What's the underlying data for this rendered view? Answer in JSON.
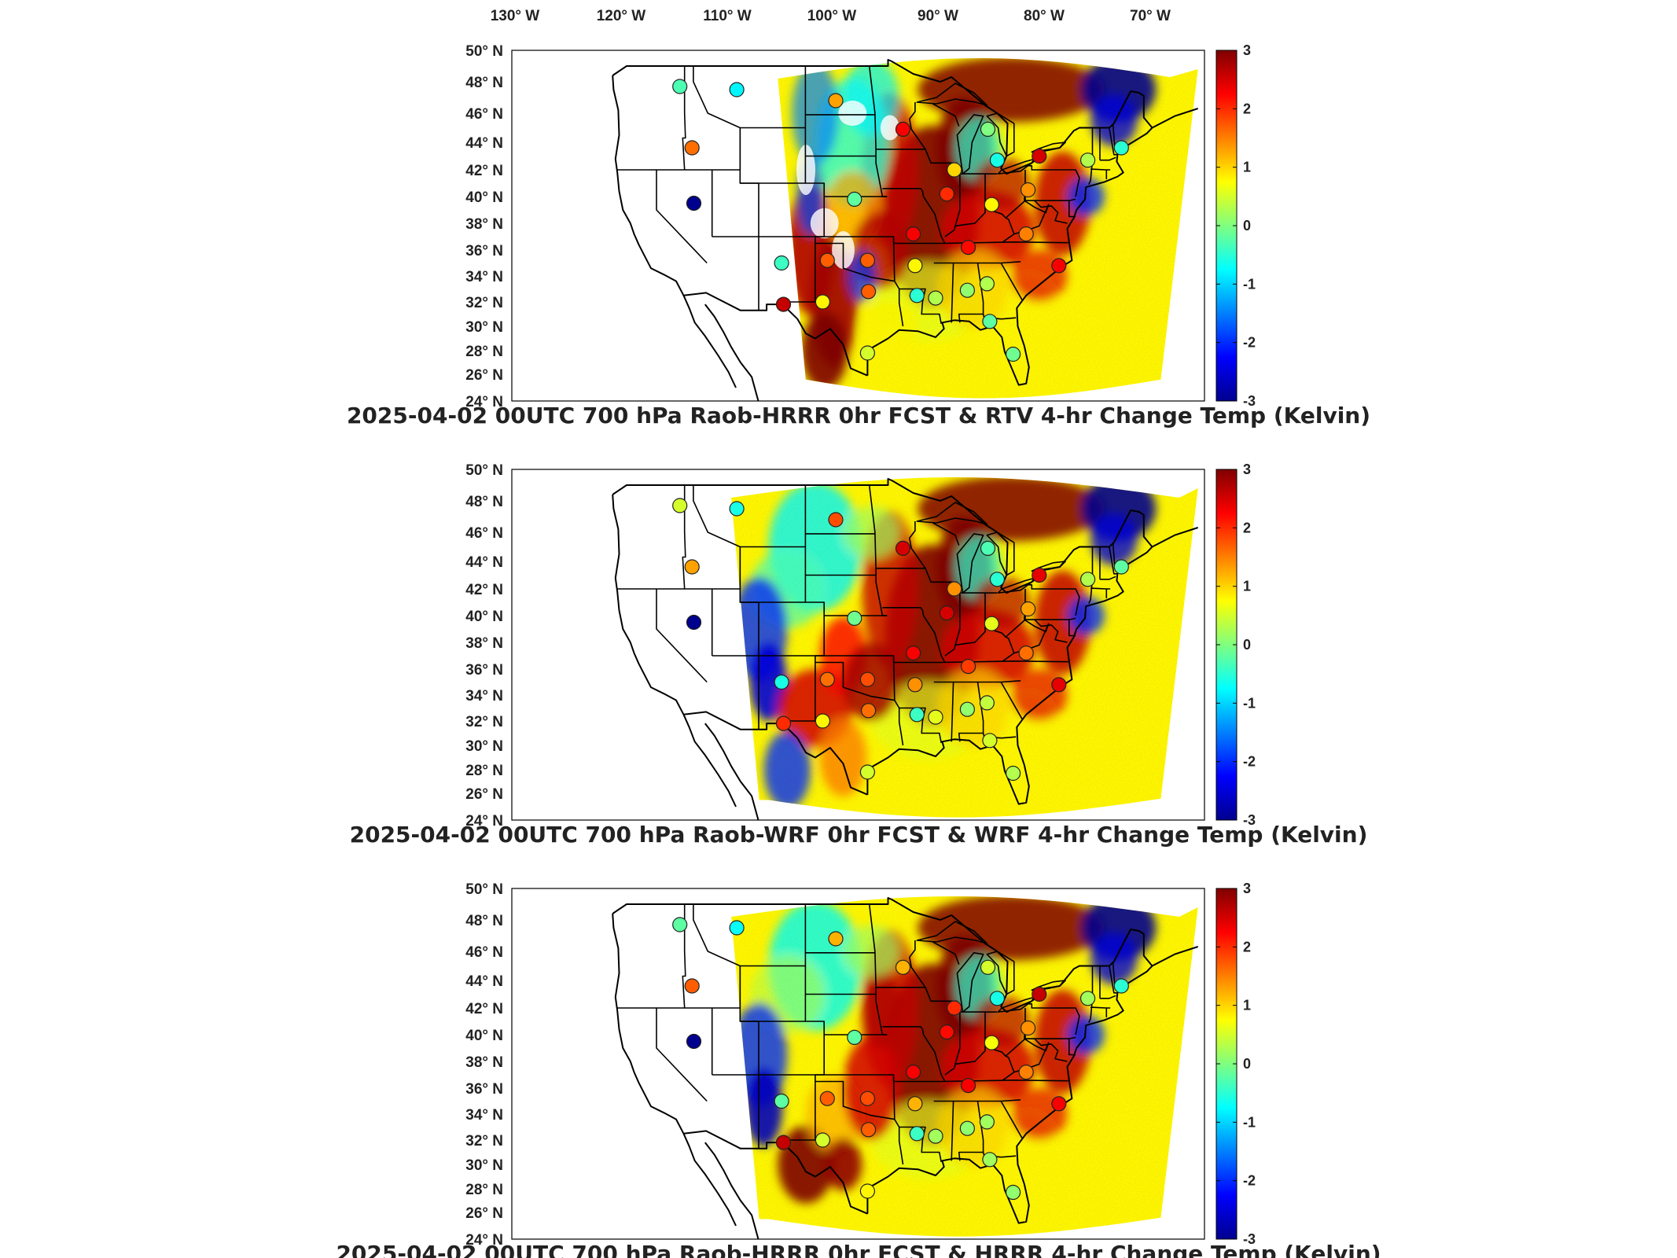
{
  "lon_ticks": [
    "130° W",
    "120° W",
    "110° W",
    "100° W",
    "90° W",
    "80° W",
    "70° W"
  ],
  "lat_ticks": [
    "50° N",
    "48° N",
    "46° N",
    "44° N",
    "42° N",
    "40° N",
    "38° N",
    "36° N",
    "34° N",
    "32° N",
    "30° N",
    "28° N",
    "26° N",
    "24° N"
  ],
  "colorbar": {
    "min": -3,
    "max": 3,
    "ticks": [
      "3",
      "2",
      "1",
      "0",
      "-1",
      "-2",
      "-3"
    ]
  },
  "panels": [
    {
      "title": "2025-04-02 00UTC 700 hPa Raob-HRRR 0hr FCST & RTV 4-hr Change Temp (Kelvin)",
      "variant": "rtv"
    },
    {
      "title": "2025-04-02 00UTC 700 hPa Raob-WRF 0hr FCST & WRF 4-hr Change Temp (Kelvin)",
      "variant": "wrf"
    },
    {
      "title": "2025-04-02 00UTC 700 hPa Raob-HRRR 0hr FCST & HRRR 4-hr Change Temp (Kelvin)",
      "variant": "hrrr"
    }
  ],
  "stations": [
    {
      "lon": -117.5,
      "lat": 47.7,
      "v": [
        -0.3,
        0.5,
        -0.2
      ]
    },
    {
      "lon": -111.4,
      "lat": 47.5,
      "v": [
        -0.8,
        -0.6,
        -0.7
      ]
    },
    {
      "lon": -100.8,
      "lat": 46.8,
      "v": [
        1.3,
        1.8,
        1.2
      ]
    },
    {
      "lon": -93.6,
      "lat": 44.9,
      "v": [
        2.3,
        2.5,
        1.2
      ]
    },
    {
      "lon": -116.2,
      "lat": 43.6,
      "v": [
        1.6,
        1.3,
        1.7
      ]
    },
    {
      "lon": -88.1,
      "lat": 42.0,
      "v": [
        1.0,
        1.4,
        2.0
      ]
    },
    {
      "lon": -84.5,
      "lat": 44.9,
      "v": [
        0.0,
        -0.3,
        0.5
      ]
    },
    {
      "lon": -83.5,
      "lat": 42.7,
      "v": [
        -0.6,
        -0.5,
        -0.6
      ]
    },
    {
      "lon": -79.0,
      "lat": 43.0,
      "v": [
        2.5,
        2.4,
        2.6
      ]
    },
    {
      "lon": -73.8,
      "lat": 42.7,
      "v": [
        0.3,
        0.3,
        0.2
      ]
    },
    {
      "lon": -70.2,
      "lat": 43.6,
      "v": [
        -0.5,
        -0.2,
        -0.5
      ]
    },
    {
      "lon": -116.0,
      "lat": 39.5,
      "v": [
        -3.0,
        -3.0,
        -3.0
      ]
    },
    {
      "lon": -98.8,
      "lat": 39.8,
      "v": [
        -0.2,
        -0.1,
        -0.2
      ]
    },
    {
      "lon": -88.9,
      "lat": 40.2,
      "v": [
        2.0,
        2.5,
        2.2
      ]
    },
    {
      "lon": -84.1,
      "lat": 39.4,
      "v": [
        0.8,
        0.6,
        0.7
      ]
    },
    {
      "lon": -80.2,
      "lat": 40.5,
      "v": [
        1.4,
        1.3,
        1.4
      ]
    },
    {
      "lon": -92.5,
      "lat": 37.2,
      "v": [
        2.3,
        2.3,
        2.3
      ]
    },
    {
      "lon": -86.6,
      "lat": 36.2,
      "v": [
        2.2,
        1.9,
        2.3
      ]
    },
    {
      "lon": -80.4,
      "lat": 37.2,
      "v": [
        1.5,
        1.6,
        1.5
      ]
    },
    {
      "lon": -76.9,
      "lat": 34.8,
      "v": [
        2.3,
        2.4,
        2.3
      ]
    },
    {
      "lon": -97.4,
      "lat": 35.2,
      "v": [
        1.7,
        1.8,
        1.8
      ]
    },
    {
      "lon": -101.7,
      "lat": 35.2,
      "v": [
        1.7,
        1.6,
        1.7
      ]
    },
    {
      "lon": -106.6,
      "lat": 35.0,
      "v": [
        -0.4,
        -0.6,
        -0.2
      ]
    },
    {
      "lon": -92.3,
      "lat": 34.8,
      "v": [
        0.8,
        1.4,
        1.2
      ]
    },
    {
      "lon": -97.3,
      "lat": 32.8,
      "v": [
        1.7,
        1.6,
        1.7
      ]
    },
    {
      "lon": -102.2,
      "lat": 32.0,
      "v": [
        0.8,
        0.8,
        0.5
      ]
    },
    {
      "lon": -106.4,
      "lat": 31.8,
      "v": [
        2.6,
        2.0,
        2.6
      ]
    },
    {
      "lon": -92.1,
      "lat": 32.5,
      "v": [
        -0.5,
        -0.4,
        -0.4
      ]
    },
    {
      "lon": -90.1,
      "lat": 32.3,
      "v": [
        0.3,
        0.6,
        0.2
      ]
    },
    {
      "lon": -86.7,
      "lat": 32.9,
      "v": [
        0.1,
        0.1,
        0.1
      ]
    },
    {
      "lon": -84.6,
      "lat": 33.4,
      "v": [
        0.3,
        0.4,
        0.2
      ]
    },
    {
      "lon": -84.3,
      "lat": 30.4,
      "v": [
        -0.2,
        0.5,
        0.2
      ]
    },
    {
      "lon": -97.4,
      "lat": 27.8,
      "v": [
        0.5,
        0.5,
        0.8
      ]
    },
    {
      "lon": -81.8,
      "lat": 27.7,
      "v": [
        -0.1,
        0.3,
        0.1
      ]
    }
  ]
}
